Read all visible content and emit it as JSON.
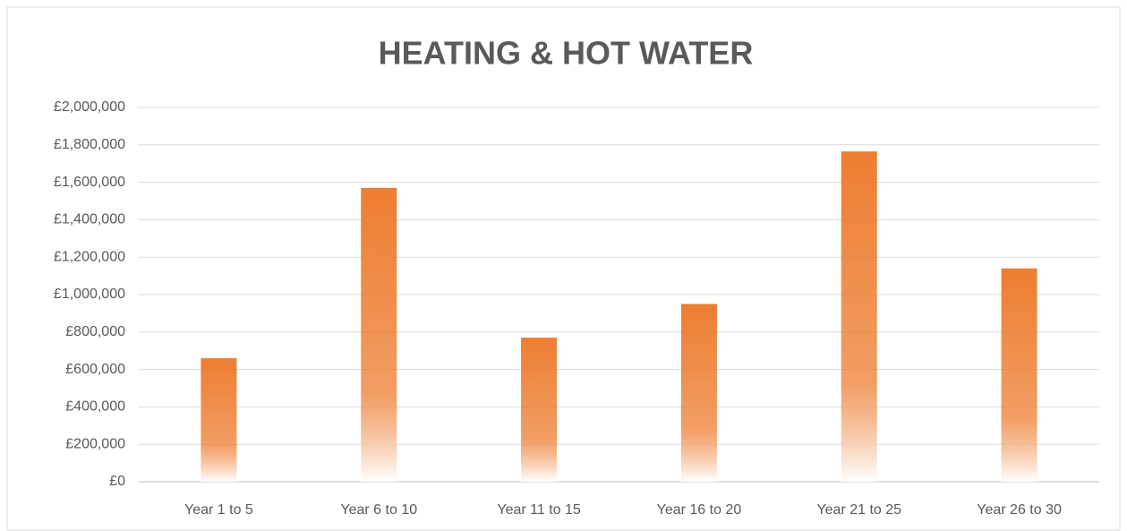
{
  "chart_data": {
    "type": "bar",
    "title": "HEATING & HOT WATER",
    "categories": [
      "Year 1 to 5",
      "Year 6 to 10",
      "Year 11 to 15",
      "Year 16 to 20",
      "Year 21 to 25",
      "Year 26 to 30"
    ],
    "values": [
      660000,
      1570000,
      770000,
      950000,
      1765000,
      1140000
    ],
    "color": "#ed7d31",
    "ylim": [
      0,
      2000000
    ],
    "yticks": [
      0,
      {
        "value": 0,
        "label": "£0"
      },
      {
        "value": 200000,
        "label": "£200,000"
      },
      {
        "value": 400000,
        "label": "£400,000"
      },
      {
        "value": 600000,
        "label": "£600,000"
      },
      {
        "value": 800000,
        "label": "£800,000"
      },
      {
        "value": 1000000,
        "label": "£1,000,000"
      },
      {
        "value": 1200000,
        "label": "£1,200,000"
      },
      {
        "value": 1400000,
        "label": "£1,400,000"
      },
      {
        "value": 1600000,
        "label": "£1,600,000"
      },
      {
        "value": 1800000,
        "label": "£1,800,000"
      },
      {
        "value": 2000000,
        "label": "£2,000,000"
      }
    ],
    "grid": true
  }
}
